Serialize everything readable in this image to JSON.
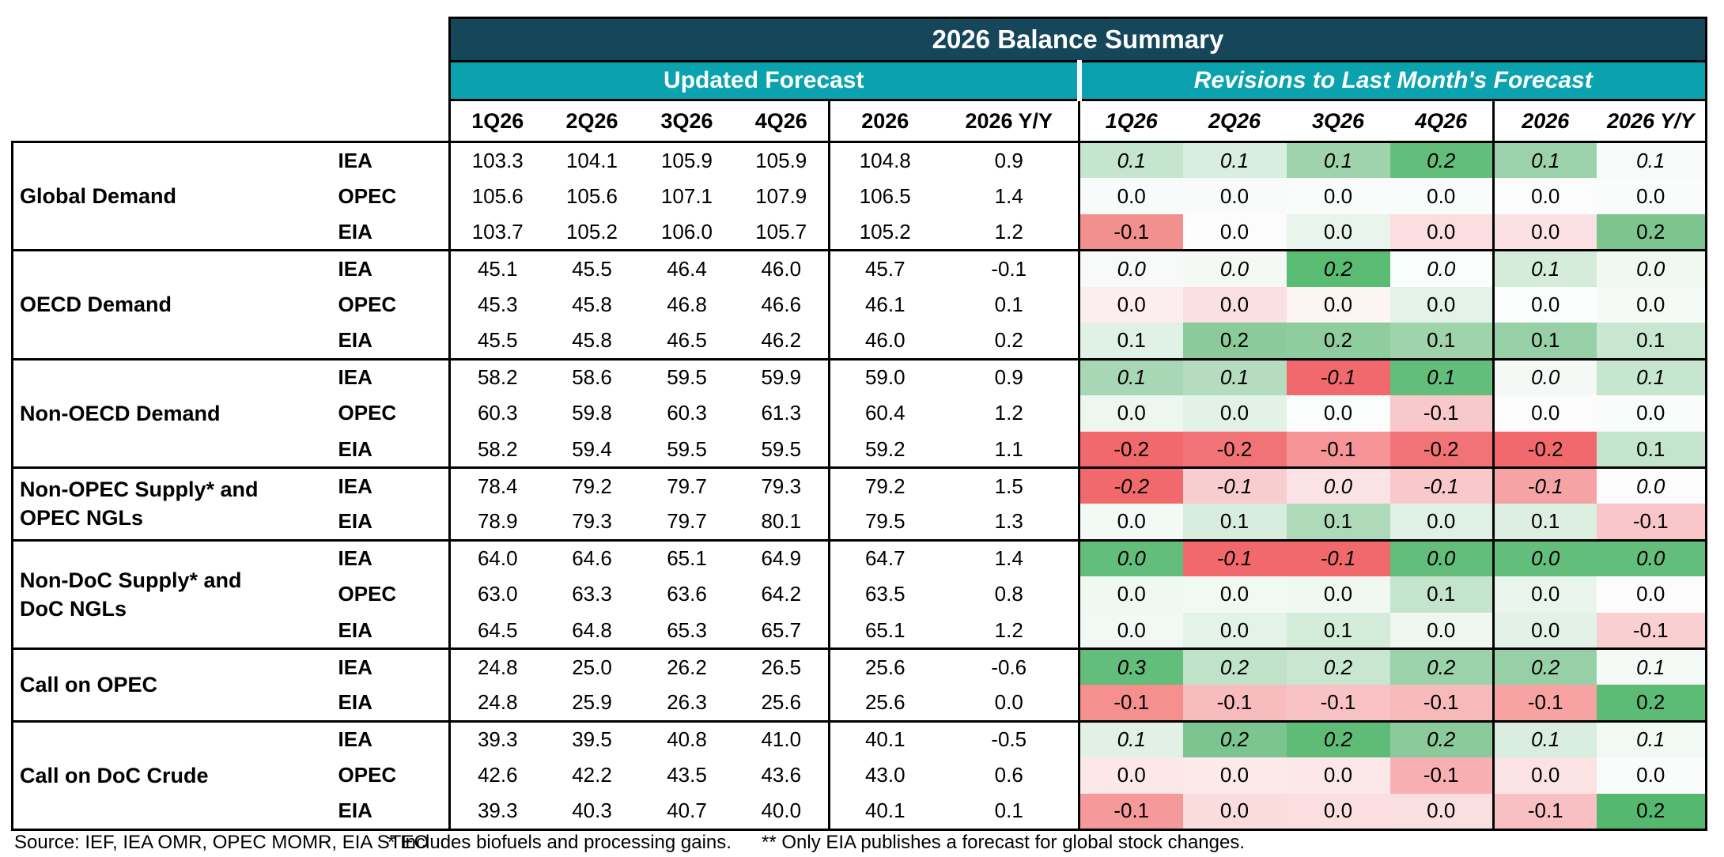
{
  "title": "2026 Balance Summary",
  "sections": {
    "updated": "Updated Forecast",
    "revisions": "Revisions to Last Month's Forecast"
  },
  "columns": [
    "1Q26",
    "2Q26",
    "3Q26",
    "4Q26",
    "2026",
    "2026 Y/Y"
  ],
  "colors": {
    "title_bg": "#15465A",
    "section_bg": "#0AA2AF",
    "border": "#000000",
    "positive_max": "#63BE7B",
    "negative_max": "#F1696C",
    "neutral": "#FBFCFB"
  },
  "groups": [
    {
      "label": "Global Demand",
      "rows": [
        {
          "agency": "IEA",
          "italic": true,
          "updated": [
            "103.3",
            "104.1",
            "105.9",
            "105.9",
            "104.8",
            "0.9"
          ],
          "revisions": [
            {
              "v": "0.1",
              "bg": "#C6E5CE"
            },
            {
              "v": "0.1",
              "bg": "#D9EEDF"
            },
            {
              "v": "0.1",
              "bg": "#9ED3AC"
            },
            {
              "v": "0.2",
              "bg": "#63BE7B"
            },
            {
              "v": "0.1",
              "bg": "#9CD2AB"
            },
            {
              "v": "0.1",
              "bg": "#F7FAF8"
            }
          ]
        },
        {
          "agency": "OPEC",
          "italic": false,
          "updated": [
            "105.6",
            "105.6",
            "107.1",
            "107.9",
            "106.5",
            "1.4"
          ],
          "revisions": [
            {
              "v": "0.0",
              "bg": "#F9FBFA"
            },
            {
              "v": "0.0",
              "bg": "#F9FBFA"
            },
            {
              "v": "0.0",
              "bg": "#FAFBFB"
            },
            {
              "v": "0.0",
              "bg": "#FAFBFB"
            },
            {
              "v": "0.0",
              "bg": "#FBFCFB"
            },
            {
              "v": "0.0",
              "bg": "#FAFBFB"
            }
          ]
        },
        {
          "agency": "EIA",
          "italic": false,
          "updated": [
            "103.7",
            "105.2",
            "106.0",
            "105.7",
            "105.2",
            "1.2"
          ],
          "revisions": [
            {
              "v": "-0.1",
              "bg": "#F2908D"
            },
            {
              "v": "0.0",
              "bg": "#FBFCFB"
            },
            {
              "v": "0.0",
              "bg": "#E8F4EC"
            },
            {
              "v": "0.0",
              "bg": "#FADEE0"
            },
            {
              "v": "0.0",
              "bg": "#FBE1E3"
            },
            {
              "v": "0.2",
              "bg": "#7CC58E"
            }
          ]
        }
      ]
    },
    {
      "label": "OECD Demand",
      "rows": [
        {
          "agency": "IEA",
          "italic": true,
          "updated": [
            "45.1",
            "45.5",
            "46.4",
            "46.0",
            "45.7",
            "-0.1"
          ],
          "revisions": [
            {
              "v": "0.0",
              "bg": "#F7FAF8"
            },
            {
              "v": "0.0",
              "bg": "#F5F9F6"
            },
            {
              "v": "0.2",
              "bg": "#5ABB72"
            },
            {
              "v": "0.0",
              "bg": "#FBFCFC"
            },
            {
              "v": "0.1",
              "bg": "#D5ECDB"
            },
            {
              "v": "0.0",
              "bg": "#F0F8F2"
            }
          ]
        },
        {
          "agency": "OPEC",
          "italic": false,
          "updated": [
            "45.3",
            "45.8",
            "46.8",
            "46.6",
            "46.1",
            "0.1"
          ],
          "revisions": [
            {
              "v": "0.0",
              "bg": "#FCEDEE"
            },
            {
              "v": "0.0",
              "bg": "#FAE0E2"
            },
            {
              "v": "0.0",
              "bg": "#FDF4F4"
            },
            {
              "v": "0.0",
              "bg": "#E4F3E8"
            },
            {
              "v": "0.0",
              "bg": "#FBFCFC"
            },
            {
              "v": "0.0",
              "bg": "#F6FAF7"
            }
          ]
        },
        {
          "agency": "EIA",
          "italic": false,
          "updated": [
            "45.5",
            "45.8",
            "46.5",
            "46.2",
            "46.0",
            "0.2"
          ],
          "revisions": [
            {
              "v": "0.1",
              "bg": "#E0F1E5"
            },
            {
              "v": "0.2",
              "bg": "#8BCB9B"
            },
            {
              "v": "0.2",
              "bg": "#90CD9E"
            },
            {
              "v": "0.1",
              "bg": "#9ED3AC"
            },
            {
              "v": "0.1",
              "bg": "#97D0A6"
            },
            {
              "v": "0.1",
              "bg": "#C8E6D0"
            }
          ]
        }
      ]
    },
    {
      "label": "Non-OECD Demand",
      "rows": [
        {
          "agency": "IEA",
          "italic": true,
          "updated": [
            "58.2",
            "58.6",
            "59.5",
            "59.9",
            "59.0",
            "0.9"
          ],
          "revisions": [
            {
              "v": "0.1",
              "bg": "#A8D7B5"
            },
            {
              "v": "0.1",
              "bg": "#B5DCBF"
            },
            {
              "v": "-0.1",
              "bg": "#F1696C"
            },
            {
              "v": "0.1",
              "bg": "#63BE7B"
            },
            {
              "v": "0.0",
              "bg": "#F4F9F5"
            },
            {
              "v": "0.1",
              "bg": "#C7E6CF"
            }
          ]
        },
        {
          "agency": "OPEC",
          "italic": false,
          "updated": [
            "60.3",
            "59.8",
            "60.3",
            "61.3",
            "60.4",
            "1.2"
          ],
          "revisions": [
            {
              "v": "0.0",
              "bg": "#EDF7F0"
            },
            {
              "v": "0.0",
              "bg": "#E3F2E7"
            },
            {
              "v": "0.0",
              "bg": "#FBFCFC"
            },
            {
              "v": "-0.1",
              "bg": "#F8C9CB"
            },
            {
              "v": "0.0",
              "bg": "#FCFCFC"
            },
            {
              "v": "0.0",
              "bg": "#FAFBFB"
            }
          ]
        },
        {
          "agency": "EIA",
          "italic": false,
          "updated": [
            "58.2",
            "59.4",
            "59.5",
            "59.5",
            "59.2",
            "1.1"
          ],
          "revisions": [
            {
              "v": "-0.2",
              "bg": "#F1696C"
            },
            {
              "v": "-0.2",
              "bg": "#F27376"
            },
            {
              "v": "-0.1",
              "bg": "#F59597"
            },
            {
              "v": "-0.2",
              "bg": "#F27376"
            },
            {
              "v": "-0.2",
              "bg": "#F1696C"
            },
            {
              "v": "0.1",
              "bg": "#C4E4CC"
            }
          ]
        }
      ]
    },
    {
      "label": "Non-OPEC Supply* and\nOPEC NGLs",
      "rows": [
        {
          "agency": "IEA",
          "italic": true,
          "updated": [
            "78.4",
            "79.2",
            "79.7",
            "79.3",
            "79.2",
            "1.5"
          ],
          "revisions": [
            {
              "v": "-0.2",
              "bg": "#F1696C"
            },
            {
              "v": "-0.1",
              "bg": "#F8CDCF"
            },
            {
              "v": "0.0",
              "bg": "#FBE2E4"
            },
            {
              "v": "-0.1",
              "bg": "#F8C8CA"
            },
            {
              "v": "-0.1",
              "bg": "#F5A3A5"
            },
            {
              "v": "0.0",
              "bg": "#FBFCFB"
            }
          ]
        },
        {
          "agency": "EIA",
          "italic": false,
          "updated": [
            "78.9",
            "79.3",
            "79.7",
            "80.1",
            "79.5",
            "1.3"
          ],
          "revisions": [
            {
              "v": "0.0",
              "bg": "#F3F9F5"
            },
            {
              "v": "0.1",
              "bg": "#D8EDDE"
            },
            {
              "v": "0.1",
              "bg": "#AFDABA"
            },
            {
              "v": "0.0",
              "bg": "#DFF0E4"
            },
            {
              "v": "0.1",
              "bg": "#DCEFE1"
            },
            {
              "v": "-0.1",
              "bg": "#F8C6C8"
            }
          ]
        }
      ]
    },
    {
      "label": "Non-DoC Supply* and\nDoC NGLs",
      "rows": [
        {
          "agency": "IEA",
          "italic": true,
          "updated": [
            "64.0",
            "64.6",
            "65.1",
            "64.9",
            "64.7",
            "1.4"
          ],
          "revisions": [
            {
              "v": "0.0",
              "bg": "#63BE7B"
            },
            {
              "v": "-0.1",
              "bg": "#F1696C"
            },
            {
              "v": "-0.1",
              "bg": "#F1696C"
            },
            {
              "v": "0.0",
              "bg": "#63BE7B"
            },
            {
              "v": "0.0",
              "bg": "#63BE7B"
            },
            {
              "v": "0.0",
              "bg": "#63BE7B"
            }
          ]
        },
        {
          "agency": "OPEC",
          "italic": false,
          "updated": [
            "63.0",
            "63.3",
            "63.6",
            "64.2",
            "63.5",
            "0.8"
          ],
          "revisions": [
            {
              "v": "0.0",
              "bg": "#EFF8F1"
            },
            {
              "v": "0.0",
              "bg": "#F1F9F3"
            },
            {
              "v": "0.0",
              "bg": "#F0F8F2"
            },
            {
              "v": "0.1",
              "bg": "#C4E4CD"
            },
            {
              "v": "0.0",
              "bg": "#E9F5EC"
            },
            {
              "v": "0.0",
              "bg": "#FBFCFB"
            }
          ]
        },
        {
          "agency": "EIA",
          "italic": false,
          "updated": [
            "64.5",
            "64.8",
            "65.3",
            "65.7",
            "65.1",
            "1.2"
          ],
          "revisions": [
            {
              "v": "0.0",
              "bg": "#F2F8F4"
            },
            {
              "v": "0.0",
              "bg": "#E4F3E8"
            },
            {
              "v": "0.1",
              "bg": "#D4ECDA"
            },
            {
              "v": "0.0",
              "bg": "#EFF7F1"
            },
            {
              "v": "0.0",
              "bg": "#E2F2E6"
            },
            {
              "v": "-0.1",
              "bg": "#F9CFD1"
            }
          ]
        }
      ]
    },
    {
      "label": "Call on OPEC",
      "rows": [
        {
          "agency": "IEA",
          "italic": true,
          "updated": [
            "24.8",
            "25.0",
            "26.2",
            "26.5",
            "25.6",
            "-0.6"
          ],
          "revisions": [
            {
              "v": "0.3",
              "bg": "#63BE7B"
            },
            {
              "v": "0.2",
              "bg": "#C0E2C9"
            },
            {
              "v": "0.2",
              "bg": "#C9E6D1"
            },
            {
              "v": "0.2",
              "bg": "#9BD2AA"
            },
            {
              "v": "0.2",
              "bg": "#97D0A7"
            },
            {
              "v": "0.1",
              "bg": "#F6FAF7"
            }
          ]
        },
        {
          "agency": "EIA",
          "italic": false,
          "updated": [
            "24.8",
            "25.9",
            "26.3",
            "25.6",
            "25.6",
            "0.0"
          ],
          "revisions": [
            {
              "v": "-0.1",
              "bg": "#F5908E"
            },
            {
              "v": "-0.1",
              "bg": "#F8BCBE"
            },
            {
              "v": "-0.1",
              "bg": "#F9C2C4"
            },
            {
              "v": "-0.1",
              "bg": "#F8B9BB"
            },
            {
              "v": "-0.1",
              "bg": "#F7A3A4"
            },
            {
              "v": "0.2",
              "bg": "#5CBB74"
            }
          ]
        }
      ]
    },
    {
      "label": "Call on DoC Crude",
      "rows": [
        {
          "agency": "IEA",
          "italic": true,
          "updated": [
            "39.3",
            "39.5",
            "40.8",
            "41.0",
            "40.1",
            "-0.5"
          ],
          "revisions": [
            {
              "v": "0.1",
              "bg": "#E1F1E5"
            },
            {
              "v": "0.2",
              "bg": "#7DC590"
            },
            {
              "v": "0.2",
              "bg": "#5FBC77"
            },
            {
              "v": "0.2",
              "bg": "#8BCA9B"
            },
            {
              "v": "0.1",
              "bg": "#D9EEDF"
            },
            {
              "v": "0.1",
              "bg": "#F2F8F3"
            }
          ]
        },
        {
          "agency": "OPEC",
          "italic": false,
          "updated": [
            "42.6",
            "42.2",
            "43.5",
            "43.6",
            "43.0",
            "0.6"
          ],
          "revisions": [
            {
              "v": "0.0",
              "bg": "#FCE8E9"
            },
            {
              "v": "0.0",
              "bg": "#FCE9EA"
            },
            {
              "v": "0.0",
              "bg": "#FBE7E8"
            },
            {
              "v": "-0.1",
              "bg": "#F8AFB1"
            },
            {
              "v": "0.0",
              "bg": "#FBE3E4"
            },
            {
              "v": "0.0",
              "bg": "#FAFBFB"
            }
          ]
        },
        {
          "agency": "EIA",
          "italic": false,
          "updated": [
            "39.3",
            "40.3",
            "40.7",
            "40.0",
            "40.1",
            "0.1"
          ],
          "revisions": [
            {
              "v": "-0.1",
              "bg": "#F5999B"
            },
            {
              "v": "0.0",
              "bg": "#FBDCDD"
            },
            {
              "v": "0.0",
              "bg": "#FBDFE0"
            },
            {
              "v": "0.0",
              "bg": "#FADFE1"
            },
            {
              "v": "-0.1",
              "bg": "#F8C0C2"
            },
            {
              "v": "0.2",
              "bg": "#54B96F"
            }
          ]
        }
      ]
    }
  ],
  "footer": {
    "source": "Source: IEF, IEA OMR, OPEC MOMR, EIA STEO",
    "note1": "* Includes biofuels and processing gains.",
    "note2": "** Only EIA publishes a forecast for global stock changes."
  }
}
